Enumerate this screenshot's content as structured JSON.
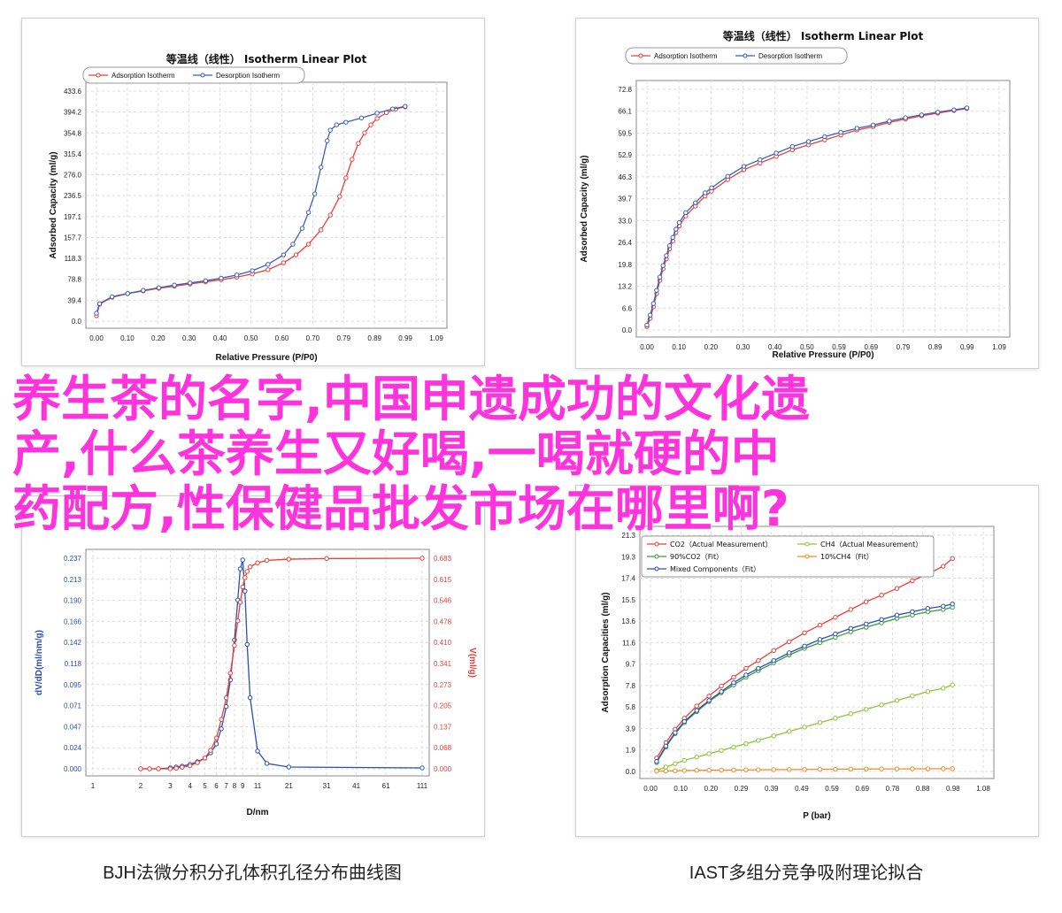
{
  "overlay_lines": [
    "养生茶的名字,中国申遗成功的文化遗",
    "产,什么茶养生又好喝,一喝就硬的中",
    "药配方,性保健品批发市场在哪里啊?"
  ],
  "overlay_color": "#ff33dd",
  "captions": {
    "bottom_left": "BJH法微分积分孔体积孔径分布曲线图",
    "bottom_right": "IAST多组分竞争吸附理论拟合"
  },
  "chart_data": [
    {
      "type": "line",
      "title": "等温线（线性） Isotherm Linear Plot",
      "xlabel": "Relative Pressure (P/P0)",
      "ylabel": "Adsorbed Capacity (ml/g)",
      "xticks": [
        "0.00",
        "0.10",
        "0.20",
        "0.30",
        "0.40",
        "0.50",
        "0.60",
        "0.70",
        "0.79",
        "0.89",
        "0.99",
        "1.09"
      ],
      "yticks": [
        "0.0",
        "39.4",
        "78.8",
        "118.3",
        "157.7",
        "197.1",
        "236.5",
        "276.0",
        "315.4",
        "354.8",
        "394.2",
        "433.6"
      ],
      "xlim": [
        0,
        1.09
      ],
      "ylim": [
        0,
        433.6
      ],
      "grid": true,
      "legend": "top-left",
      "series": [
        {
          "name": "Adsorption Isotherm",
          "color": "#e8403a",
          "x": [
            0.0,
            0.01,
            0.05,
            0.1,
            0.15,
            0.2,
            0.25,
            0.3,
            0.35,
            0.4,
            0.45,
            0.5,
            0.55,
            0.6,
            0.64,
            0.68,
            0.72,
            0.75,
            0.78,
            0.8,
            0.82,
            0.84,
            0.86,
            0.88,
            0.9,
            0.93,
            0.96,
            0.99
          ],
          "y": [
            10,
            32,
            45,
            52,
            57,
            62,
            66,
            70,
            74,
            78,
            83,
            89,
            97,
            110,
            125,
            145,
            172,
            200,
            235,
            270,
            305,
            335,
            355,
            370,
            382,
            393,
            400,
            404
          ]
        },
        {
          "name": "Desorption Isotherm",
          "color": "#3a5fb8",
          "x": [
            0.0,
            0.01,
            0.05,
            0.1,
            0.15,
            0.2,
            0.25,
            0.3,
            0.35,
            0.4,
            0.45,
            0.5,
            0.55,
            0.6,
            0.63,
            0.66,
            0.68,
            0.7,
            0.72,
            0.74,
            0.75,
            0.77,
            0.8,
            0.85,
            0.9,
            0.95,
            0.99
          ],
          "y": [
            15,
            33,
            46,
            52,
            58,
            63,
            68,
            72,
            76,
            81,
            87,
            95,
            107,
            125,
            145,
            175,
            205,
            240,
            290,
            340,
            360,
            370,
            375,
            383,
            392,
            400,
            405
          ]
        }
      ]
    },
    {
      "type": "line",
      "title": "等温线（线性） Isotherm Linear Plot",
      "xlabel": "Relative Pressure (P/P0)",
      "ylabel": "Adsorbed Capacity (ml/g)",
      "xticks": [
        "0.00",
        "0.10",
        "0.20",
        "0.30",
        "0.40",
        "0.50",
        "0.59",
        "0.69",
        "0.79",
        "0.89",
        "0.99",
        "1.09"
      ],
      "yticks": [
        "0.0",
        "6.6",
        "13.2",
        "19.8",
        "26.4",
        "33.0",
        "39.7",
        "46.3",
        "52.9",
        "59.5",
        "66.1",
        "72.8"
      ],
      "xlim": [
        0,
        1.09
      ],
      "ylim": [
        0,
        72.8
      ],
      "grid": true,
      "legend": "top-left",
      "series": [
        {
          "name": "Adsorption Isotherm",
          "color": "#e8403a",
          "x": [
            0.0,
            0.01,
            0.02,
            0.03,
            0.04,
            0.05,
            0.06,
            0.07,
            0.08,
            0.09,
            0.1,
            0.12,
            0.15,
            0.18,
            0.2,
            0.25,
            0.3,
            0.35,
            0.4,
            0.45,
            0.5,
            0.55,
            0.6,
            0.65,
            0.7,
            0.75,
            0.8,
            0.85,
            0.9,
            0.95,
            0.99
          ],
          "y": [
            1.0,
            3.5,
            7,
            11,
            15,
            18.5,
            21.5,
            24.5,
            27,
            29.5,
            31.5,
            34.5,
            37.5,
            40.5,
            42,
            45.5,
            48.5,
            50.5,
            52.5,
            54.5,
            56,
            57.5,
            59,
            60.5,
            61.5,
            62.8,
            63.8,
            64.8,
            65.6,
            66.4,
            67.0
          ]
        },
        {
          "name": "Desorption Isotherm",
          "color": "#3a5fb8",
          "x": [
            0.0,
            0.01,
            0.02,
            0.03,
            0.04,
            0.05,
            0.06,
            0.07,
            0.08,
            0.09,
            0.1,
            0.12,
            0.15,
            0.18,
            0.2,
            0.25,
            0.3,
            0.35,
            0.4,
            0.45,
            0.5,
            0.55,
            0.6,
            0.65,
            0.7,
            0.75,
            0.8,
            0.85,
            0.9,
            0.95,
            0.99
          ],
          "y": [
            1.5,
            4.5,
            8,
            12,
            16,
            19.5,
            22.5,
            25.5,
            28,
            30.5,
            32.5,
            35.5,
            38.5,
            41.5,
            43,
            46.5,
            49.5,
            51.5,
            53.5,
            55.5,
            57,
            58.5,
            59.8,
            61,
            62,
            63.2,
            64.2,
            65.1,
            65.9,
            66.6,
            67.2
          ]
        }
      ]
    },
    {
      "type": "line",
      "title": "",
      "xlabel": "D/nm",
      "ylabel": "dV/dD(ml/nm/g)",
      "ylabel_right": "V(ml/g)",
      "xticks": [
        "1",
        "2",
        "3",
        "4",
        "5",
        "6",
        "7",
        "8",
        "9",
        "11",
        "21",
        "31",
        "41",
        "61",
        "111"
      ],
      "yticks": [
        "0.000",
        "0.024",
        "0.047",
        "0.071",
        "0.095",
        "0.118",
        "0.142",
        "0.166",
        "0.190",
        "0.213",
        "0.237"
      ],
      "yticks_right": [
        "0.000",
        "0.068",
        "0.137",
        "0.205",
        "0.273",
        "0.341",
        "0.410",
        "0.478",
        "0.546",
        "0.615",
        "0.683"
      ],
      "ylim": [
        0,
        0.237
      ],
      "ylim_right": [
        0,
        0.683
      ],
      "grid": true,
      "series": [
        {
          "name": "dV/dD",
          "color": "#2a4fb0",
          "x": [
            2,
            2.3,
            2.6,
            3,
            3.3,
            3.6,
            4,
            4.5,
            5,
            5.5,
            6,
            6.5,
            7,
            7.5,
            8,
            8.4,
            8.7,
            9,
            9.3,
            9.6,
            10,
            11,
            14,
            21,
            111
          ],
          "y": [
            0,
            0,
            0,
            0.001,
            0.002,
            0.003,
            0.005,
            0.008,
            0.012,
            0.018,
            0.028,
            0.045,
            0.07,
            0.1,
            0.145,
            0.19,
            0.225,
            0.235,
            0.2,
            0.14,
            0.08,
            0.02,
            0.006,
            0.002,
            0.001
          ]
        },
        {
          "name": "V",
          "color": "#e8403a",
          "x": [
            2,
            2.3,
            2.6,
            3,
            3.3,
            3.6,
            4,
            4.5,
            5,
            5.5,
            6,
            6.5,
            7,
            7.5,
            8,
            8.4,
            8.7,
            9,
            9.3,
            9.6,
            10,
            11,
            14,
            21,
            31,
            111
          ],
          "y": [
            0,
            0,
            0,
            0,
            0.002,
            0.005,
            0.01,
            0.02,
            0.035,
            0.06,
            0.1,
            0.16,
            0.23,
            0.31,
            0.4,
            0.48,
            0.54,
            0.59,
            0.62,
            0.64,
            0.655,
            0.668,
            0.676,
            0.68,
            0.682,
            0.683
          ]
        }
      ]
    },
    {
      "type": "line",
      "title": "",
      "xlabel": "P (bar)",
      "ylabel": "Adsorption Capacities (ml/g)",
      "xticks": [
        "0.00",
        "0.10",
        "0.20",
        "0.29",
        "0.39",
        "0.49",
        "0.59",
        "0.69",
        "0.78",
        "0.88",
        "0.98",
        "1.08"
      ],
      "yticks": [
        "0.0",
        "1.9",
        "3.9",
        "5.8",
        "7.8",
        "9.7",
        "11.6",
        "13.6",
        "15.5",
        "17.4",
        "19.3",
        "21.3"
      ],
      "xlim": [
        0,
        1.08
      ],
      "ylim": [
        0,
        21.3
      ],
      "grid": true,
      "legend": "top-left",
      "series": [
        {
          "name": "CO2（Actual Measurement）",
          "color": "#e8403a",
          "x": [
            0.02,
            0.05,
            0.08,
            0.11,
            0.15,
            0.19,
            0.23,
            0.27,
            0.31,
            0.35,
            0.4,
            0.45,
            0.5,
            0.55,
            0.6,
            0.65,
            0.7,
            0.75,
            0.8,
            0.85,
            0.9,
            0.95,
            0.98
          ],
          "y": [
            1.2,
            2.6,
            3.8,
            4.8,
            5.9,
            6.8,
            7.7,
            8.5,
            9.3,
            10.0,
            10.9,
            11.7,
            12.5,
            13.2,
            13.9,
            14.6,
            15.3,
            15.9,
            16.5,
            17.2,
            17.8,
            18.5,
            19.2
          ]
        },
        {
          "name": "90%CO2（Fit）",
          "color": "#3a9a3a",
          "x": [
            0.02,
            0.05,
            0.08,
            0.11,
            0.15,
            0.19,
            0.23,
            0.27,
            0.31,
            0.35,
            0.4,
            0.45,
            0.5,
            0.55,
            0.6,
            0.65,
            0.7,
            0.75,
            0.8,
            0.85,
            0.9,
            0.95,
            0.98
          ],
          "y": [
            0.8,
            2.2,
            3.4,
            4.4,
            5.4,
            6.3,
            7.1,
            7.8,
            8.5,
            9.1,
            9.8,
            10.5,
            11.1,
            11.6,
            12.1,
            12.6,
            13.0,
            13.4,
            13.8,
            14.1,
            14.4,
            14.6,
            14.8
          ]
        },
        {
          "name": "Mixed Components（Fit）",
          "color": "#2a4fb0",
          "x": [
            0.02,
            0.05,
            0.08,
            0.11,
            0.15,
            0.19,
            0.23,
            0.27,
            0.31,
            0.35,
            0.4,
            0.45,
            0.5,
            0.55,
            0.6,
            0.65,
            0.7,
            0.75,
            0.8,
            0.85,
            0.9,
            0.95,
            0.98
          ],
          "y": [
            0.9,
            2.3,
            3.5,
            4.5,
            5.5,
            6.4,
            7.2,
            8.0,
            8.7,
            9.3,
            10.0,
            10.7,
            11.3,
            11.9,
            12.4,
            12.9,
            13.3,
            13.7,
            14.1,
            14.4,
            14.7,
            14.9,
            15.1
          ]
        },
        {
          "name": "CH4（Actual Measurement）",
          "color": "#8cc63a",
          "x": [
            0.02,
            0.05,
            0.08,
            0.11,
            0.15,
            0.19,
            0.23,
            0.27,
            0.31,
            0.35,
            0.4,
            0.45,
            0.5,
            0.55,
            0.6,
            0.65,
            0.7,
            0.75,
            0.8,
            0.85,
            0.9,
            0.95,
            0.98
          ],
          "y": [
            0.1,
            0.4,
            0.7,
            1.0,
            1.3,
            1.6,
            1.9,
            2.2,
            2.5,
            2.8,
            3.2,
            3.6,
            4.0,
            4.4,
            4.8,
            5.2,
            5.6,
            6.0,
            6.4,
            6.8,
            7.2,
            7.5,
            7.8
          ]
        },
        {
          "name": "10%CH4（Fit）",
          "color": "#f08a2a",
          "x": [
            0.02,
            0.05,
            0.08,
            0.11,
            0.15,
            0.19,
            0.23,
            0.27,
            0.31,
            0.35,
            0.4,
            0.45,
            0.5,
            0.55,
            0.6,
            0.65,
            0.7,
            0.75,
            0.8,
            0.85,
            0.9,
            0.95,
            0.98
          ],
          "y": [
            0.02,
            0.04,
            0.06,
            0.08,
            0.1,
            0.11,
            0.12,
            0.13,
            0.14,
            0.15,
            0.16,
            0.17,
            0.18,
            0.19,
            0.2,
            0.21,
            0.22,
            0.23,
            0.23,
            0.24,
            0.24,
            0.25,
            0.25
          ]
        }
      ]
    }
  ]
}
